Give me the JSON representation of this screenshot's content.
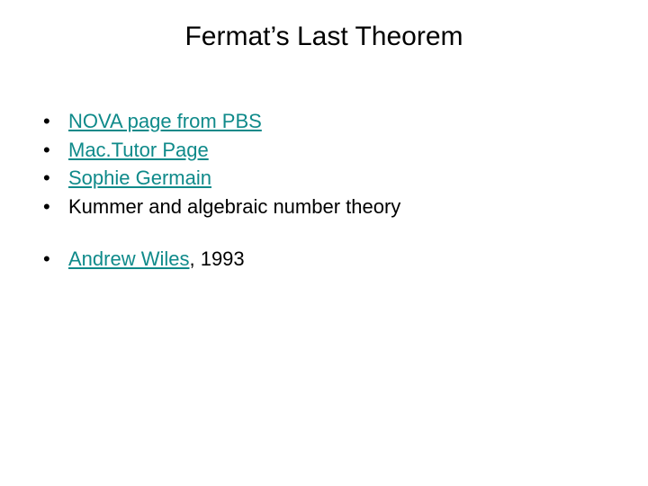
{
  "title": "Fermat’s Last Theorem",
  "colors": {
    "background": "#ffffff",
    "text": "#000000",
    "link": "#0f8a8a"
  },
  "typography": {
    "title_fontsize": 30,
    "body_fontsize": 22,
    "font_family": "Arial"
  },
  "bullets_group1": [
    {
      "text": "NOVA page from PBS",
      "is_link": true
    },
    {
      "text": "Mac.Tutor Page",
      "is_link": true
    },
    {
      "text": "Sophie Germain",
      "is_link": true
    },
    {
      "text": "Kummer and algebraic number theory",
      "is_link": false
    }
  ],
  "bullets_group2": [
    {
      "link_text": "Andrew Wiles",
      "suffix_text": ",  1993"
    }
  ],
  "bullet_char": "•"
}
